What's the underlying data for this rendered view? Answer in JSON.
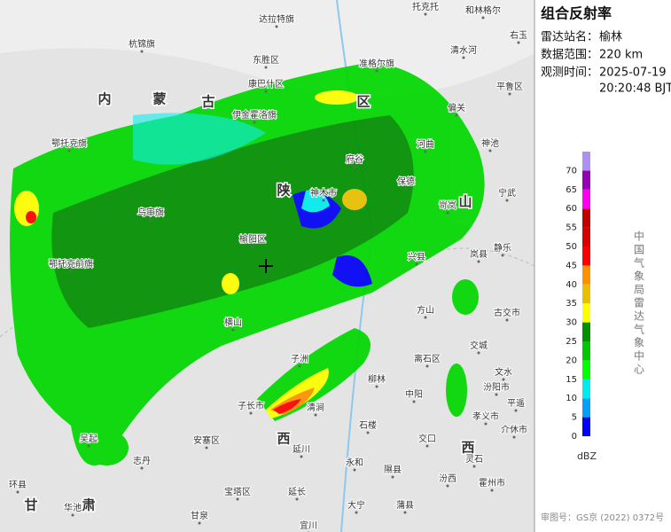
{
  "panel": {
    "title": "组合反射率",
    "rows": [
      {
        "label": "雷达站名：",
        "value": "榆林"
      },
      {
        "label": "数据范围：",
        "value": "220 km"
      },
      {
        "label": "观测时间：",
        "value": "2025-07-19",
        "value2": "20:20:48 BJT"
      }
    ],
    "legend": {
      "ticks": [
        0,
        5,
        10,
        15,
        20,
        25,
        30,
        35,
        40,
        45,
        50,
        55,
        60,
        65,
        70
      ],
      "colors": [
        "#0000f6",
        "#01a0f6",
        "#00ecec",
        "#01ff00",
        "#00c800",
        "#019000",
        "#ffff00",
        "#e7c000",
        "#ff9000",
        "#ff0000",
        "#d60000",
        "#c00000",
        "#ff00f0",
        "#9600b4",
        "#ad90f0"
      ],
      "unit": "dBZ"
    },
    "agency": "中国气象局雷达气象中心",
    "approval": "审图号：GS京 (2022) 0372号"
  },
  "map": {
    "regions": [
      "内",
      "蒙",
      "古",
      "区",
      "陕",
      "西",
      "山",
      "西",
      "甘",
      "肃"
    ],
    "labels": [
      "托克托",
      "和林格尔",
      "达拉特旗",
      "杭锦旗",
      "东胜区",
      "准格尔旗",
      "清水河",
      "右玉",
      "康巴什区",
      "平鲁区",
      "伊金霍洛旗",
      "偏关",
      "神池",
      "河曲",
      "鄂托克旗",
      "府谷",
      "保德",
      "宁武",
      "神木市",
      "乌审旗",
      "岢岚",
      "榆阳区",
      "静乐",
      "鄂托克前旗",
      "兴县",
      "岚县",
      "方山",
      "古交市",
      "横山",
      "离石区",
      "交城",
      "文水",
      "子洲",
      "柳林",
      "中阳",
      "汾阳市",
      "子长市",
      "清涧",
      "孝义市",
      "平遥",
      "石楼",
      "交口",
      "介休市",
      "安塞区",
      "延川",
      "灵石",
      "志丹",
      "永和",
      "隰县",
      "汾西",
      "霍州市",
      "吴起",
      "宝塔区",
      "延长",
      "大宁",
      "蒲县",
      "环县",
      "华池",
      "甘泉",
      "宜川"
    ]
  }
}
